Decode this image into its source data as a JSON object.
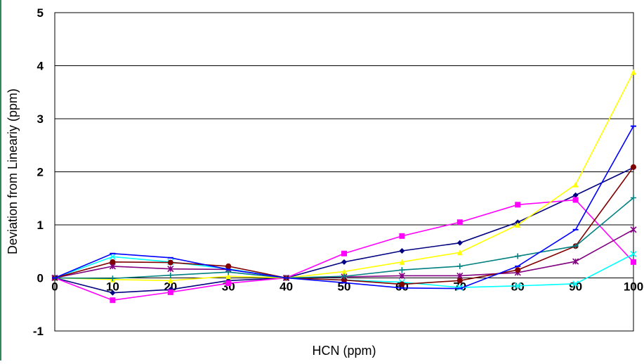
{
  "chart_data": {
    "type": "line",
    "title": "",
    "xlabel": "HCN (ppm)",
    "ylabel": "Deviation from Lineariy (ppm)",
    "x": [
      0,
      10,
      20,
      30,
      40,
      50,
      60,
      70,
      80,
      90,
      100
    ],
    "xlim": [
      0,
      100
    ],
    "ylim": [
      -1,
      5
    ],
    "x_ticks": [
      "0",
      "10",
      "20",
      "30",
      "40",
      "50",
      "60",
      "70",
      "80",
      "90",
      "100"
    ],
    "y_ticks": [
      "-1",
      "0",
      "1",
      "2",
      "3",
      "4",
      "5"
    ],
    "grid": "horizontal",
    "legend": "none",
    "series": [
      {
        "color": "#000080",
        "marker": "diamond",
        "values": [
          0,
          -0.28,
          -0.22,
          -0.05,
          0,
          0.3,
          0.51,
          0.66,
          1.05,
          1.56,
          2.08
        ]
      },
      {
        "color": "#ff00ff",
        "marker": "square",
        "values": [
          0,
          -0.42,
          -0.27,
          -0.1,
          0,
          0.46,
          0.79,
          1.05,
          1.38,
          1.47,
          0.3
        ]
      },
      {
        "color": "#ffff00",
        "marker": "triangle",
        "values": [
          0,
          -0.03,
          -0.05,
          0.03,
          0,
          0.12,
          0.3,
          0.48,
          1.0,
          1.76,
          3.88
        ]
      },
      {
        "color": "#00ffff",
        "marker": "x",
        "values": [
          0,
          0.4,
          0.3,
          0.17,
          0,
          -0.04,
          -0.08,
          -0.18,
          -0.15,
          -0.11,
          0.45
        ]
      },
      {
        "color": "#800080",
        "marker": "star",
        "values": [
          0,
          0.22,
          0.17,
          0.16,
          0,
          0.02,
          0.04,
          0.04,
          0.1,
          0.31,
          0.91
        ]
      },
      {
        "color": "#800000",
        "marker": "circle",
        "values": [
          0,
          0.3,
          0.29,
          0.22,
          0,
          -0.04,
          -0.12,
          -0.05,
          0.15,
          0.6,
          2.09
        ]
      },
      {
        "color": "#008080",
        "marker": "plus",
        "values": [
          0,
          -0.01,
          0.05,
          0.11,
          0,
          0.03,
          0.15,
          0.22,
          0.41,
          0.6,
          1.51
        ]
      },
      {
        "color": "#0000ff",
        "marker": "dash",
        "values": [
          0,
          0.46,
          0.38,
          0.16,
          0,
          -0.09,
          -0.19,
          -0.2,
          0.22,
          0.91,
          2.86
        ]
      }
    ]
  }
}
